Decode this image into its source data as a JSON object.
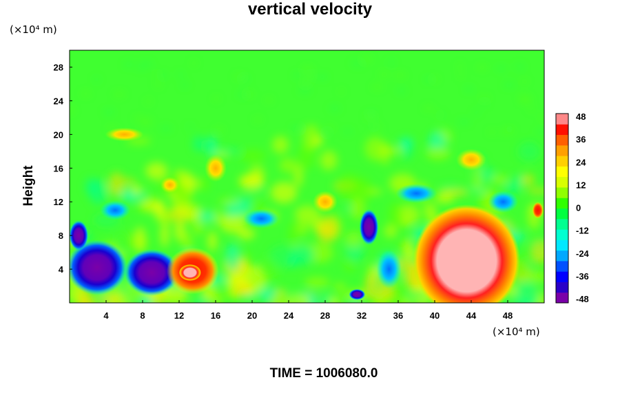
{
  "chart_data": {
    "type": "heatmap",
    "title": "vertical velocity",
    "ylabel": "Height",
    "x_unit": "(×10⁴ m)",
    "y_unit": "(×10⁴ m)",
    "xlim": [
      0,
      52
    ],
    "ylim": [
      0,
      30
    ],
    "x_ticks": [
      "4",
      "8",
      "12",
      "16",
      "20",
      "24",
      "28",
      "32",
      "36",
      "40",
      "44",
      "48"
    ],
    "y_ticks": [
      "4",
      "8",
      "12",
      "16",
      "20",
      "24",
      "28"
    ],
    "colorbar": {
      "range": [
        -48,
        48
      ],
      "ticks": [
        "48",
        "36",
        "24",
        "12",
        "0",
        "-12",
        "-24",
        "-36",
        "-48"
      ],
      "colors": [
        "#7a00a8",
        "#2a00c8",
        "#0000ff",
        "#0050ff",
        "#00a8ff",
        "#00e8ff",
        "#00ffd0",
        "#00ff90",
        "#00ff40",
        "#30ff00",
        "#90ff00",
        "#d8ff00",
        "#ffff00",
        "#ffd000",
        "#ffa000",
        "#ff6000",
        "#ff1000",
        "#ff8888"
      ]
    },
    "features": [
      {
        "x": 3.0,
        "y": 4.0,
        "w": -46
      },
      {
        "x": 1.0,
        "y": 8.0,
        "w": -36
      },
      {
        "x": 9.0,
        "y": 3.5,
        "w": -48
      },
      {
        "x": 13.5,
        "y": 3.8,
        "w": 38
      },
      {
        "x": 32.8,
        "y": 9.0,
        "w": -40
      },
      {
        "x": 35.0,
        "y": 4.0,
        "w": -20
      },
      {
        "x": 43.5,
        "y": 5.0,
        "w": 48
      },
      {
        "x": 51.3,
        "y": 11.0,
        "w": 36
      },
      {
        "x": 16.0,
        "y": 16.0,
        "w": 14
      }
    ]
  },
  "footer": {
    "time_label": "TIME = 1006080.0"
  }
}
